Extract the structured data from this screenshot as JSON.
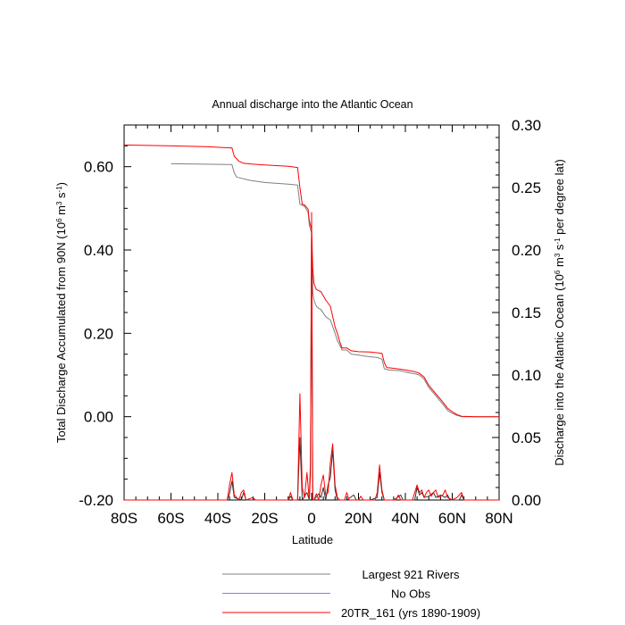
{
  "chart_data": {
    "type": "line",
    "title": "Annual discharge into the Atlantic Ocean",
    "xlabel": "Latitude",
    "ylabel_left": "Total Discharge Accumulated from 90N (10^6 m^3 s^-1)",
    "ylabel_right": "Discharge into the Atlantic Ocean (10^6 m^3 s^-1 per degree lat)",
    "xlim": [
      -80,
      80
    ],
    "ylim_left": [
      -0.2,
      0.7
    ],
    "ylim_right": [
      0.0,
      0.3
    ],
    "x_ticks": [
      {
        "value": -80,
        "label": "80S"
      },
      {
        "value": -60,
        "label": "60S"
      },
      {
        "value": -40,
        "label": "40S"
      },
      {
        "value": -20,
        "label": "20S"
      },
      {
        "value": 0,
        "label": "0"
      },
      {
        "value": 20,
        "label": "20N"
      },
      {
        "value": 40,
        "label": "40N"
      },
      {
        "value": 60,
        "label": "60N"
      },
      {
        "value": 80,
        "label": "80N"
      }
    ],
    "y_ticks_left": [
      {
        "value": -0.2,
        "label": "-0.20"
      },
      {
        "value": 0.0,
        "label": "0.00"
      },
      {
        "value": 0.2,
        "label": "0.20"
      },
      {
        "value": 0.4,
        "label": "0.40"
      },
      {
        "value": 0.6,
        "label": "0.60"
      }
    ],
    "y_ticks_right": [
      {
        "value": 0.0,
        "label": "0.00"
      },
      {
        "value": 0.05,
        "label": "0.05"
      },
      {
        "value": 0.1,
        "label": "0.10"
      },
      {
        "value": 0.15,
        "label": "0.15"
      },
      {
        "value": 0.2,
        "label": "0.20"
      },
      {
        "value": 0.25,
        "label": "0.25"
      },
      {
        "value": 0.3,
        "label": "0.30"
      }
    ],
    "series": [
      {
        "name": "Largest 921 Rivers",
        "color": "#808080",
        "axis": "left",
        "points": [
          [
            -60,
            0.607
          ],
          [
            -45,
            0.606
          ],
          [
            -34,
            0.605
          ],
          [
            -33,
            0.585
          ],
          [
            -32,
            0.575
          ],
          [
            -30,
            0.572
          ],
          [
            -26,
            0.567
          ],
          [
            -20,
            0.562
          ],
          [
            -10,
            0.558
          ],
          [
            -6,
            0.556
          ],
          [
            -5,
            0.51
          ],
          [
            -3,
            0.505
          ],
          [
            -1.5,
            0.49
          ],
          [
            -1,
            0.46
          ],
          [
            0,
            0.44
          ],
          [
            0.5,
            0.3
          ],
          [
            1,
            0.28
          ],
          [
            2,
            0.265
          ],
          [
            3,
            0.26
          ],
          [
            4,
            0.257
          ],
          [
            6,
            0.24
          ],
          [
            8,
            0.232
          ],
          [
            10,
            0.2
          ],
          [
            11,
            0.182
          ],
          [
            12,
            0.172
          ],
          [
            13,
            0.16
          ],
          [
            15,
            0.16
          ],
          [
            17,
            0.15
          ],
          [
            20,
            0.148
          ],
          [
            23,
            0.145
          ],
          [
            28,
            0.142
          ],
          [
            30,
            0.138
          ],
          [
            31,
            0.115
          ],
          [
            33,
            0.112
          ],
          [
            38,
            0.11
          ],
          [
            40,
            0.107
          ],
          [
            44,
            0.103
          ],
          [
            46,
            0.1
          ],
          [
            48,
            0.09
          ],
          [
            50,
            0.07
          ],
          [
            53,
            0.05
          ],
          [
            56,
            0.03
          ],
          [
            58,
            0.015
          ],
          [
            60,
            0.008
          ],
          [
            62,
            0.003
          ],
          [
            64,
            0.0
          ],
          [
            70,
            0.0
          ],
          [
            80,
            0.0
          ]
        ]
      },
      {
        "name": "No Obs",
        "color": "#7f7fff",
        "axis": "left",
        "points": []
      },
      {
        "name": "20TR_161 (yrs 1890-1909)",
        "color": "#ff0000",
        "axis": "left",
        "points": [
          [
            -80,
            0.652
          ],
          [
            -62,
            0.65
          ],
          [
            -45,
            0.648
          ],
          [
            -34,
            0.645
          ],
          [
            -33,
            0.625
          ],
          [
            -31,
            0.613
          ],
          [
            -29,
            0.608
          ],
          [
            -25,
            0.606
          ],
          [
            -20,
            0.604
          ],
          [
            -10,
            0.601
          ],
          [
            -6,
            0.598
          ],
          [
            -5,
            0.55
          ],
          [
            -4,
            0.51
          ],
          [
            -3,
            0.508
          ],
          [
            -1.5,
            0.498
          ],
          [
            -1,
            0.47
          ],
          [
            0,
            0.45
          ],
          [
            0.5,
            0.355
          ],
          [
            1,
            0.32
          ],
          [
            2,
            0.305
          ],
          [
            4,
            0.3
          ],
          [
            6,
            0.28
          ],
          [
            8,
            0.265
          ],
          [
            10,
            0.215
          ],
          [
            11,
            0.2
          ],
          [
            12,
            0.18
          ],
          [
            13,
            0.165
          ],
          [
            15,
            0.165
          ],
          [
            17,
            0.158
          ],
          [
            20,
            0.156
          ],
          [
            25,
            0.155
          ],
          [
            30,
            0.152
          ],
          [
            31,
            0.13
          ],
          [
            32,
            0.118
          ],
          [
            35,
            0.116
          ],
          [
            40,
            0.112
          ],
          [
            44,
            0.108
          ],
          [
            46,
            0.104
          ],
          [
            48,
            0.095
          ],
          [
            50,
            0.075
          ],
          [
            53,
            0.055
          ],
          [
            56,
            0.035
          ],
          [
            58,
            0.02
          ],
          [
            60,
            0.012
          ],
          [
            62,
            0.005
          ],
          [
            64,
            0.001
          ],
          [
            70,
            0.0
          ],
          [
            80,
            0.0
          ]
        ]
      },
      {
        "name": "Largest 921 Rivers",
        "color": "#333333",
        "axis": "right",
        "points": [
          [
            -80,
            0.0
          ],
          [
            -36,
            0.0
          ],
          [
            -35,
            0.005
          ],
          [
            -34,
            0.015
          ],
          [
            -33,
            0.002
          ],
          [
            -30,
            0.0
          ],
          [
            -29,
            0.006
          ],
          [
            -28,
            0.0
          ],
          [
            -20,
            0.0
          ],
          [
            -10,
            0.0
          ],
          [
            -9,
            0.003
          ],
          [
            -8,
            0.0
          ],
          [
            -6,
            0.0
          ],
          [
            -5,
            0.05
          ],
          [
            -4,
            0.0
          ],
          [
            -2,
            0.006
          ],
          [
            -1,
            0.0
          ],
          [
            -0.5,
            0.03
          ],
          [
            0,
            0.22
          ],
          [
            0.5,
            0.0
          ],
          [
            1,
            0.0
          ],
          [
            3,
            0.005
          ],
          [
            4,
            0.002
          ],
          [
            5,
            0.01
          ],
          [
            6,
            0.0
          ],
          [
            7,
            0.012
          ],
          [
            8,
            0.018
          ],
          [
            9,
            0.04
          ],
          [
            10,
            0.008
          ],
          [
            11,
            0.0
          ],
          [
            15,
            0.0
          ],
          [
            18,
            0.004
          ],
          [
            19,
            0.0
          ],
          [
            25,
            0.0
          ],
          [
            28,
            0.002
          ],
          [
            29,
            0.022
          ],
          [
            30,
            0.006
          ],
          [
            31,
            0.0
          ],
          [
            35,
            0.0
          ],
          [
            38,
            0.004
          ],
          [
            39,
            0.0
          ],
          [
            44,
            0.0
          ],
          [
            45,
            0.01
          ],
          [
            46,
            0.004
          ],
          [
            47,
            0.006
          ],
          [
            48,
            0.002
          ],
          [
            50,
            0.003
          ],
          [
            52,
            0.006
          ],
          [
            53,
            0.002
          ],
          [
            55,
            0.004
          ],
          [
            57,
            0.002
          ],
          [
            58,
            0.004
          ],
          [
            59,
            0.0
          ],
          [
            63,
            0.0
          ],
          [
            64,
            0.004
          ],
          [
            65,
            0.0
          ],
          [
            80,
            0.0
          ]
        ]
      },
      {
        "name": "20TR_161 (yrs 1890-1909)",
        "color": "#ff0000",
        "axis": "right",
        "points": [
          [
            -80,
            0.0
          ],
          [
            -36,
            0.0
          ],
          [
            -35,
            0.012
          ],
          [
            -34,
            0.022
          ],
          [
            -33,
            0.004
          ],
          [
            -31,
            0.0
          ],
          [
            -30,
            0.006
          ],
          [
            -29,
            0.008
          ],
          [
            -28,
            0.0
          ],
          [
            -25,
            0.002
          ],
          [
            -24,
            0.0
          ],
          [
            -10,
            0.0
          ],
          [
            -9,
            0.006
          ],
          [
            -8,
            0.0
          ],
          [
            -6,
            0.0
          ],
          [
            -5,
            0.085
          ],
          [
            -4,
            0.01
          ],
          [
            -3,
            0.002
          ],
          [
            -2,
            0.022
          ],
          [
            -1,
            0.0
          ],
          [
            -0.5,
            0.02
          ],
          [
            0,
            0.23
          ],
          [
            0.5,
            0.0
          ],
          [
            1,
            0.0
          ],
          [
            2,
            0.005
          ],
          [
            3,
            0.0
          ],
          [
            4,
            0.012
          ],
          [
            5,
            0.02
          ],
          [
            6,
            0.004
          ],
          [
            7,
            0.006
          ],
          [
            8,
            0.03
          ],
          [
            9,
            0.045
          ],
          [
            10,
            0.012
          ],
          [
            11,
            0.002
          ],
          [
            12,
            0.0
          ],
          [
            14,
            0.0
          ],
          [
            15,
            0.006
          ],
          [
            16,
            0.0
          ],
          [
            20,
            0.0
          ],
          [
            21,
            0.003
          ],
          [
            22,
            0.0
          ],
          [
            27,
            0.0
          ],
          [
            28,
            0.006
          ],
          [
            29,
            0.028
          ],
          [
            30,
            0.008
          ],
          [
            31,
            0.0
          ],
          [
            36,
            0.0
          ],
          [
            37,
            0.004
          ],
          [
            38,
            0.0
          ],
          [
            43,
            0.0
          ],
          [
            44,
            0.006
          ],
          [
            45,
            0.012
          ],
          [
            46,
            0.006
          ],
          [
            47,
            0.008
          ],
          [
            48,
            0.002
          ],
          [
            49,
            0.006
          ],
          [
            50,
            0.008
          ],
          [
            51,
            0.003
          ],
          [
            52,
            0.006
          ],
          [
            53,
            0.008
          ],
          [
            54,
            0.002
          ],
          [
            56,
            0.004
          ],
          [
            57,
            0.008
          ],
          [
            58,
            0.002
          ],
          [
            60,
            0.0
          ],
          [
            62,
            0.002
          ],
          [
            64,
            0.006
          ],
          [
            65,
            0.0
          ],
          [
            80,
            0.0
          ]
        ]
      }
    ],
    "legend": [
      {
        "label": "Largest 921 Rivers",
        "color": "#808080"
      },
      {
        "label": "No Obs",
        "color": "#7f7fff"
      },
      {
        "label": "20TR_161 (yrs 1890-1909)",
        "color": "#ff0000"
      }
    ],
    "legend_position": "bottom"
  }
}
